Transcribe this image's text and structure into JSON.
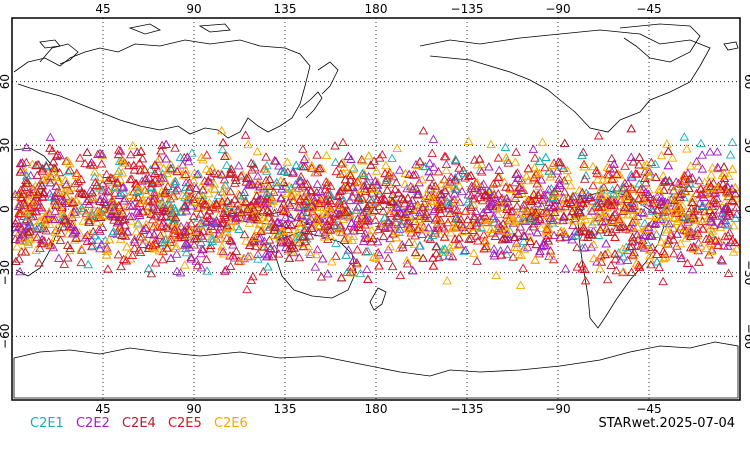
{
  "map": {
    "projection": "cylindrical equidistant",
    "lon_range": [
      0,
      360
    ],
    "lat_range": [
      -90,
      90
    ],
    "lon_ticks": [
      {
        "value": 45,
        "label": "45"
      },
      {
        "value": 90,
        "label": "90"
      },
      {
        "value": 135,
        "label": "135"
      },
      {
        "value": 180,
        "label": "180"
      },
      {
        "value": 225,
        "label": "−135"
      },
      {
        "value": 270,
        "label": "−90"
      },
      {
        "value": 315,
        "label": "−45"
      }
    ],
    "lat_ticks": [
      {
        "value": 60,
        "label": "60"
      },
      {
        "value": 30,
        "label": "30"
      },
      {
        "value": 0,
        "label": "0"
      },
      {
        "value": -30,
        "label": "−30"
      },
      {
        "value": -60,
        "label": "−60"
      }
    ],
    "grid": "dotted",
    "marker": "open-triangle",
    "observation_band_lat": [
      -40,
      40
    ]
  },
  "legend": [
    {
      "name": "C2E1",
      "color": "#1aaeb8"
    },
    {
      "name": "C2E2",
      "color": "#a01fc0"
    },
    {
      "name": "C2E4",
      "color": "#b81c2a"
    },
    {
      "name": "C2E5",
      "color": "#e01020"
    },
    {
      "name": "C2E6",
      "color": "#f5a800"
    }
  ],
  "stamp": "STARwet.2025-07-04"
}
